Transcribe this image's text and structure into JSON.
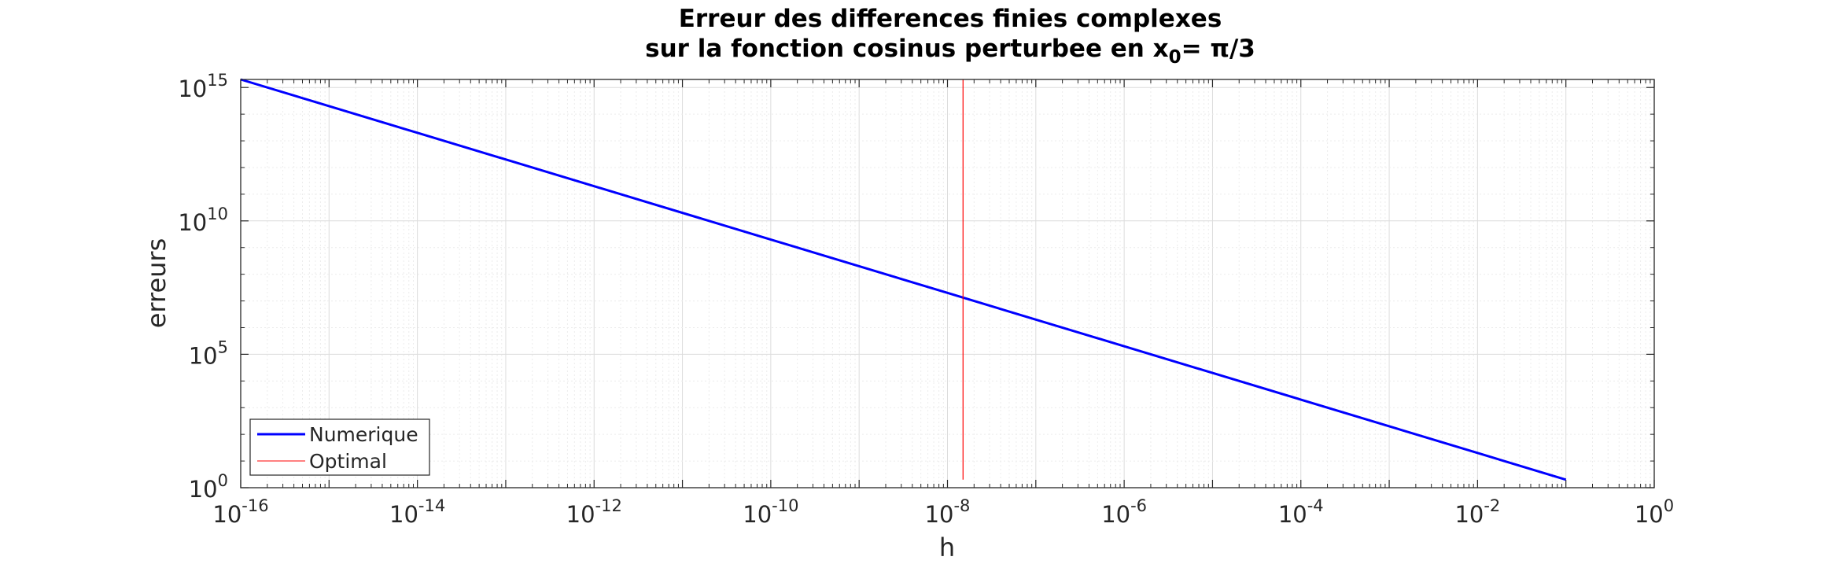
{
  "chart_data": {
    "type": "line",
    "title_line1": "Erreur des differences finies complexes",
    "title_line2_prefix": "sur la fonction cosinus perturbee en x",
    "title_line2_subscript": "0",
    "title_line2_suffix": "= π/3",
    "xlabel": "h",
    "ylabel": "erreurs",
    "x_scale": "log",
    "y_scale": "log",
    "xlim": [
      1e-16,
      1
    ],
    "ylim": [
      1,
      2000000000000000.0
    ],
    "grid": true,
    "minor_grid": true,
    "legend_position": "bottom-left",
    "x_ticks": [
      {
        "base": "10",
        "exp": "-16",
        "value": 1e-16
      },
      {
        "base": "10",
        "exp": "-14",
        "value": 1e-14
      },
      {
        "base": "10",
        "exp": "-12",
        "value": 1e-12
      },
      {
        "base": "10",
        "exp": "-10",
        "value": 1e-10
      },
      {
        "base": "10",
        "exp": "-8",
        "value": 1e-08
      },
      {
        "base": "10",
        "exp": "-6",
        "value": 1e-06
      },
      {
        "base": "10",
        "exp": "-4",
        "value": 0.0001
      },
      {
        "base": "10",
        "exp": "-2",
        "value": 0.01
      },
      {
        "base": "10",
        "exp": "0",
        "value": 1
      }
    ],
    "y_ticks": [
      {
        "base": "10",
        "exp": "0",
        "value": 1
      },
      {
        "base": "10",
        "exp": "5",
        "value": 100000.0
      },
      {
        "base": "10",
        "exp": "10",
        "value": 10000000000.0
      },
      {
        "base": "10",
        "exp": "15",
        "value": 1000000000000000.0
      }
    ],
    "series": [
      {
        "name": "Numerique",
        "color": "#0000ff",
        "style": "solid",
        "x": [
          1e-16,
          1e-14,
          1e-12,
          1e-10,
          1e-08,
          1e-06,
          0.0001,
          0.01,
          0.1
        ],
        "y": [
          2000000000000000.0,
          20000000000000.0,
          200000000000.0,
          2000000000.0,
          20000000.0,
          200000.0,
          2000.0,
          20,
          2
        ]
      },
      {
        "name": "Optimal",
        "color": "#ff0000",
        "style": "vertical",
        "x": [
          1.5e-08,
          1.5e-08
        ],
        "y": [
          2,
          2000000000000000.0
        ]
      }
    ]
  }
}
